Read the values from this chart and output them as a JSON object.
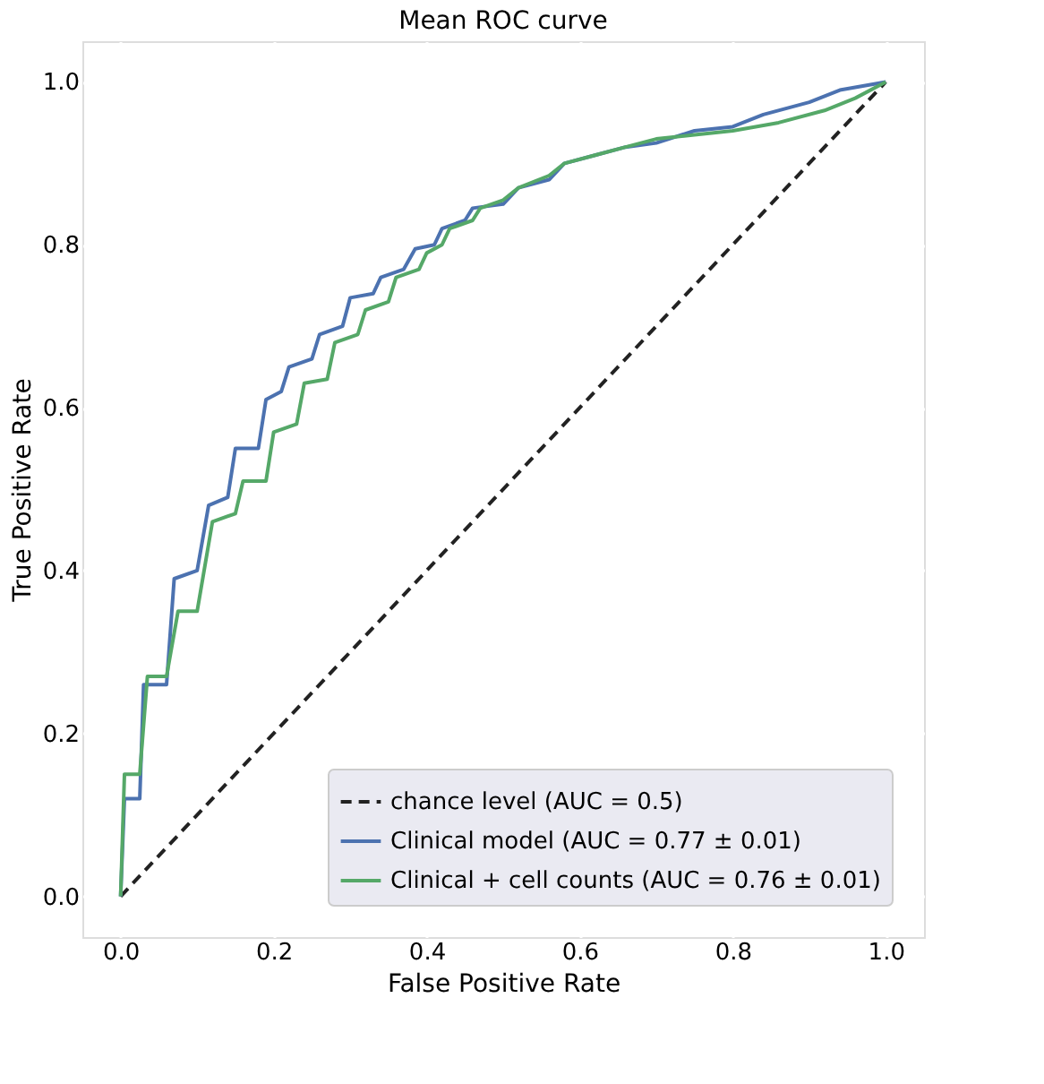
{
  "chart_data": {
    "type": "line",
    "title": "Mean ROC curve",
    "xlabel": "False Positive Rate",
    "ylabel": "True Positive Rate",
    "xlim": [
      -0.05,
      1.05
    ],
    "ylim": [
      -0.05,
      1.05
    ],
    "xticks": [
      {
        "value": 0,
        "label": "0.0"
      },
      0.2,
      0.4,
      0.6,
      0.8,
      {
        "value": 1,
        "label": "1.0"
      }
    ],
    "yticks": [
      {
        "value": 0,
        "label": "0.0"
      },
      0.2,
      0.4,
      0.6,
      0.8,
      {
        "value": 1,
        "label": "1.0"
      }
    ],
    "grid": true,
    "legend": "bottom right",
    "marker": "none",
    "series": [
      {
        "name": "chance level (AUC = 0.5)",
        "color": "#222222",
        "line_style": "dashed",
        "x": [
          0,
          1
        ],
        "values": [
          0,
          1
        ]
      },
      {
        "name": "Clinical model (AUC = 0.77 ± 0.01)",
        "color": "#4c72b0",
        "line_style": "solid",
        "x": [
          0,
          0.005,
          0.025,
          0.03,
          0.06,
          0.07,
          0.1,
          0.115,
          0.14,
          0.15,
          0.18,
          0.19,
          0.21,
          0.22,
          0.25,
          0.26,
          0.29,
          0.3,
          0.33,
          0.34,
          0.37,
          0.385,
          0.41,
          0.42,
          0.45,
          0.46,
          0.5,
          0.52,
          0.56,
          0.58,
          0.62,
          0.66,
          0.7,
          0.75,
          0.8,
          0.84,
          0.9,
          0.94,
          0.97,
          1
        ],
        "values": [
          0,
          0.12,
          0.12,
          0.26,
          0.26,
          0.39,
          0.4,
          0.48,
          0.49,
          0.55,
          0.55,
          0.61,
          0.62,
          0.65,
          0.66,
          0.69,
          0.7,
          0.735,
          0.74,
          0.76,
          0.77,
          0.795,
          0.8,
          0.82,
          0.83,
          0.845,
          0.85,
          0.87,
          0.88,
          0.9,
          0.91,
          0.92,
          0.925,
          0.94,
          0.945,
          0.96,
          0.975,
          0.99,
          0.995,
          1
        ]
      },
      {
        "name": "Clinical + cell counts (AUC = 0.76 ± 0.01)",
        "color": "#55a868",
        "line_style": "solid",
        "x": [
          0,
          0.005,
          0.025,
          0.035,
          0.06,
          0.075,
          0.1,
          0.12,
          0.15,
          0.16,
          0.19,
          0.2,
          0.23,
          0.24,
          0.27,
          0.28,
          0.31,
          0.32,
          0.35,
          0.36,
          0.39,
          0.4,
          0.42,
          0.43,
          0.46,
          0.47,
          0.5,
          0.52,
          0.56,
          0.58,
          0.62,
          0.66,
          0.7,
          0.75,
          0.8,
          0.86,
          0.92,
          0.96,
          1
        ],
        "values": [
          0,
          0.15,
          0.15,
          0.27,
          0.27,
          0.35,
          0.35,
          0.46,
          0.47,
          0.51,
          0.51,
          0.57,
          0.58,
          0.63,
          0.635,
          0.68,
          0.69,
          0.72,
          0.73,
          0.76,
          0.77,
          0.79,
          0.8,
          0.82,
          0.83,
          0.845,
          0.855,
          0.87,
          0.885,
          0.9,
          0.91,
          0.92,
          0.93,
          0.935,
          0.94,
          0.95,
          0.965,
          0.98,
          1
        ]
      }
    ]
  }
}
